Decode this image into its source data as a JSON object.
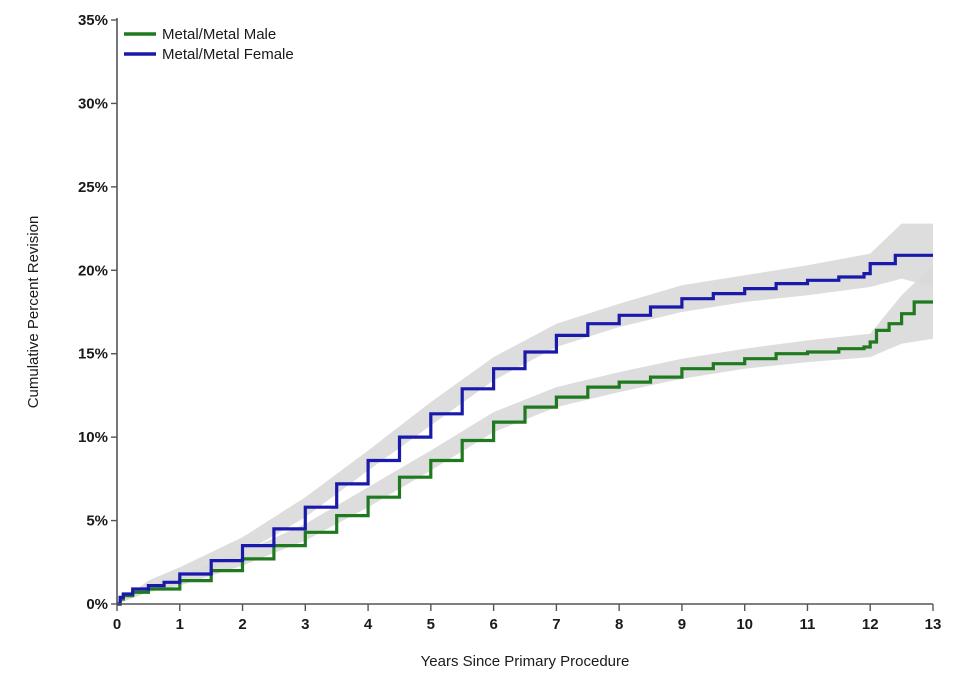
{
  "chart_data": {
    "type": "line",
    "xlabel": "Years Since Primary Procedure",
    "ylabel": "Cumulative Percent Revision",
    "xlim": [
      0,
      13
    ],
    "ylim": [
      0,
      35
    ],
    "x_ticks": [
      0,
      1,
      2,
      3,
      4,
      5,
      6,
      7,
      8,
      9,
      10,
      11,
      12,
      13
    ],
    "y_ticks": [
      0,
      5,
      10,
      15,
      20,
      25,
      30,
      35
    ],
    "y_tick_labels": [
      "0%",
      "5%",
      "10%",
      "15%",
      "20%",
      "25%",
      "30%",
      "35%"
    ],
    "x_tick_labels": [
      "0",
      "1",
      "2",
      "3",
      "4",
      "5",
      "6",
      "7",
      "8",
      "9",
      "10",
      "11",
      "12",
      "13"
    ],
    "grid": false,
    "legend_position": "top-left",
    "confidence_band_color": "#d9d9d9",
    "series": [
      {
        "name": "Metal/Metal Male",
        "color": "#1f7a1f",
        "points": [
          [
            0,
            0
          ],
          [
            0.05,
            0.3
          ],
          [
            0.1,
            0.5
          ],
          [
            0.25,
            0.7
          ],
          [
            0.5,
            0.9
          ],
          [
            1,
            1.4
          ],
          [
            1.5,
            2.0
          ],
          [
            2,
            2.7
          ],
          [
            2.5,
            3.5
          ],
          [
            3,
            4.3
          ],
          [
            3.5,
            5.3
          ],
          [
            4,
            6.4
          ],
          [
            4.5,
            7.6
          ],
          [
            5,
            8.6
          ],
          [
            5.5,
            9.8
          ],
          [
            6,
            10.9
          ],
          [
            6.5,
            11.8
          ],
          [
            7,
            12.4
          ],
          [
            7.5,
            13.0
          ],
          [
            8,
            13.3
          ],
          [
            8.5,
            13.6
          ],
          [
            9,
            14.1
          ],
          [
            9.5,
            14.4
          ],
          [
            10,
            14.7
          ],
          [
            10.5,
            15.0
          ],
          [
            11,
            15.1
          ],
          [
            11.5,
            15.3
          ],
          [
            11.9,
            15.4
          ],
          [
            12,
            15.7
          ],
          [
            12.1,
            16.4
          ],
          [
            12.3,
            16.8
          ],
          [
            12.5,
            17.4
          ],
          [
            12.7,
            18.1
          ],
          [
            13,
            18.1
          ]
        ],
        "ci_lower": [
          [
            0,
            0
          ],
          [
            0.5,
            0.7
          ],
          [
            1,
            1.1
          ],
          [
            2,
            2.3
          ],
          [
            3,
            3.8
          ],
          [
            4,
            5.8
          ],
          [
            5,
            8.0
          ],
          [
            6,
            10.3
          ],
          [
            7,
            11.8
          ],
          [
            8,
            12.7
          ],
          [
            9,
            13.5
          ],
          [
            10,
            14.1
          ],
          [
            11,
            14.5
          ],
          [
            12,
            14.8
          ],
          [
            12.5,
            15.6
          ],
          [
            13,
            15.9
          ]
        ],
        "ci_upper": [
          [
            0,
            0
          ],
          [
            0.5,
            1.1
          ],
          [
            1,
            1.7
          ],
          [
            2,
            3.1
          ],
          [
            3,
            4.8
          ],
          [
            4,
            7.0
          ],
          [
            5,
            9.2
          ],
          [
            6,
            11.5
          ],
          [
            7,
            13.0
          ],
          [
            8,
            13.9
          ],
          [
            9,
            14.7
          ],
          [
            10,
            15.3
          ],
          [
            11,
            15.8
          ],
          [
            12,
            16.2
          ],
          [
            12.5,
            18.5
          ],
          [
            13,
            20.3
          ]
        ]
      },
      {
        "name": "Metal/Metal Female",
        "color": "#1a1aaa",
        "points": [
          [
            0,
            0
          ],
          [
            0.05,
            0.4
          ],
          [
            0.1,
            0.6
          ],
          [
            0.25,
            0.9
          ],
          [
            0.5,
            1.1
          ],
          [
            0.75,
            1.3
          ],
          [
            1,
            1.8
          ],
          [
            1.5,
            2.6
          ],
          [
            2,
            3.5
          ],
          [
            2.5,
            4.5
          ],
          [
            3,
            5.8
          ],
          [
            3.5,
            7.2
          ],
          [
            4,
            8.6
          ],
          [
            4.5,
            10.0
          ],
          [
            5,
            11.4
          ],
          [
            5.5,
            12.9
          ],
          [
            6,
            14.1
          ],
          [
            6.5,
            15.1
          ],
          [
            7,
            16.1
          ],
          [
            7.5,
            16.8
          ],
          [
            8,
            17.3
          ],
          [
            8.5,
            17.8
          ],
          [
            9,
            18.3
          ],
          [
            9.5,
            18.6
          ],
          [
            10,
            18.9
          ],
          [
            10.5,
            19.2
          ],
          [
            11,
            19.4
          ],
          [
            11.5,
            19.6
          ],
          [
            11.9,
            19.8
          ],
          [
            12,
            20.4
          ],
          [
            12.4,
            20.9
          ],
          [
            13,
            20.9
          ]
        ],
        "ci_lower": [
          [
            0,
            0
          ],
          [
            0.5,
            0.8
          ],
          [
            1,
            1.4
          ],
          [
            2,
            3.0
          ],
          [
            3,
            5.2
          ],
          [
            4,
            8.0
          ],
          [
            5,
            10.7
          ],
          [
            6,
            13.4
          ],
          [
            7,
            15.4
          ],
          [
            8,
            16.6
          ],
          [
            9,
            17.5
          ],
          [
            10,
            18.1
          ],
          [
            11,
            18.5
          ],
          [
            12,
            19.0
          ],
          [
            12.5,
            19.5
          ],
          [
            13,
            19.0
          ]
        ],
        "ci_upper": [
          [
            0,
            0
          ],
          [
            0.5,
            1.4
          ],
          [
            1,
            2.2
          ],
          [
            2,
            4.0
          ],
          [
            3,
            6.4
          ],
          [
            4,
            9.2
          ],
          [
            5,
            12.1
          ],
          [
            6,
            14.8
          ],
          [
            7,
            16.8
          ],
          [
            8,
            18.0
          ],
          [
            9,
            19.1
          ],
          [
            10,
            19.7
          ],
          [
            11,
            20.3
          ],
          [
            12,
            21.0
          ],
          [
            12.5,
            22.8
          ],
          [
            13,
            22.8
          ]
        ]
      }
    ]
  }
}
